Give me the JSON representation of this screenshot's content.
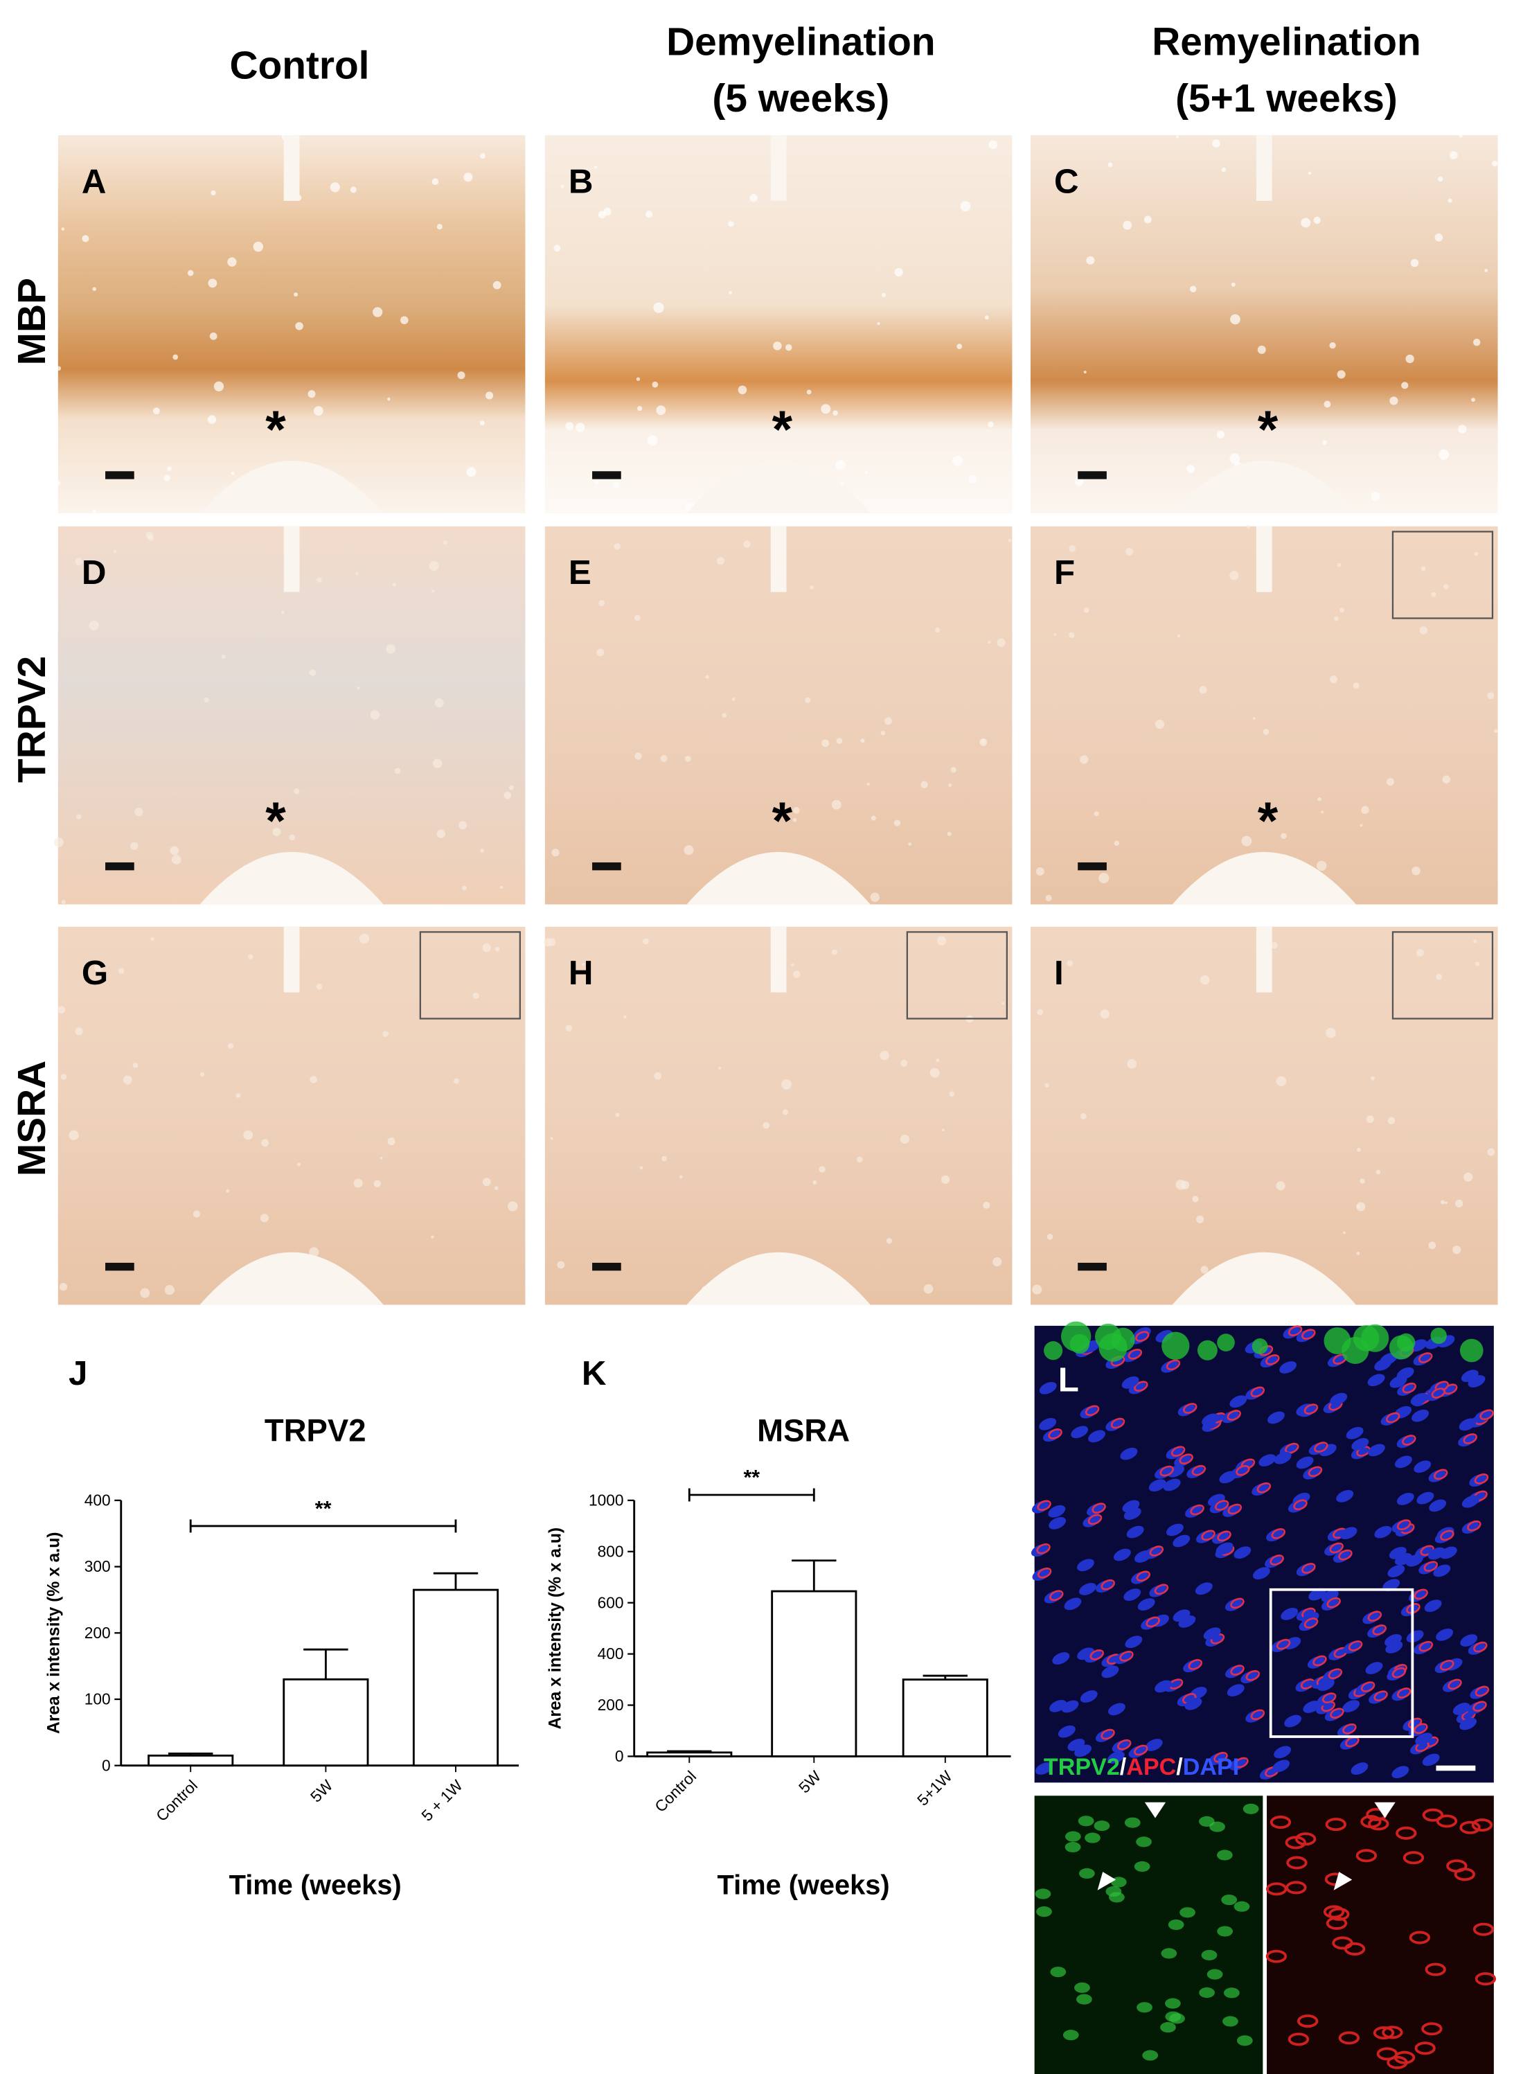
{
  "columns": [
    [
      "Control"
    ],
    [
      "Demyelination",
      "(5 weeks)"
    ],
    [
      "Remyelination",
      "(5+1 weeks)"
    ]
  ],
  "rows": [
    "MBP",
    "TRPV2",
    "MSRA"
  ],
  "panels": [
    "A",
    "B",
    "C",
    "D",
    "E",
    "F",
    "G",
    "H",
    "I"
  ],
  "lesion_marker": "*",
  "chart_data": [
    {
      "type": "bar",
      "panel": "J",
      "title": "TRPV2",
      "ylabel": "Area x intensity  (% x a.u)",
      "xlabel": "Time (weeks)",
      "categories": [
        "Control",
        "5W",
        "5 + 1W"
      ],
      "values": [
        15,
        130,
        265
      ],
      "errors": [
        3,
        45,
        25
      ],
      "color": "#ffffff",
      "ylim": [
        0,
        400
      ],
      "yticks": [
        0,
        100,
        200,
        300,
        400
      ],
      "significance": {
        "label": "**",
        "between": [
          0,
          2
        ]
      }
    },
    {
      "type": "bar",
      "panel": "K",
      "title": "MSRA",
      "ylabel": "Area x intensity  (% x a.u)",
      "xlabel": "Time (weeks)",
      "categories": [
        "Control",
        "5W",
        "5+1W"
      ],
      "values": [
        15,
        645,
        300
      ],
      "errors": [
        5,
        120,
        15
      ],
      "color": "#ffffff",
      "ylim": [
        0,
        1000
      ],
      "yticks": [
        0,
        200,
        400,
        600,
        800,
        1000
      ],
      "significance": {
        "label": "**",
        "between": [
          0,
          1
        ]
      }
    }
  ],
  "fluorescence": {
    "panel": "L",
    "legend": [
      "TRPV2",
      "/",
      "APC",
      "/",
      "DAPI"
    ]
  }
}
